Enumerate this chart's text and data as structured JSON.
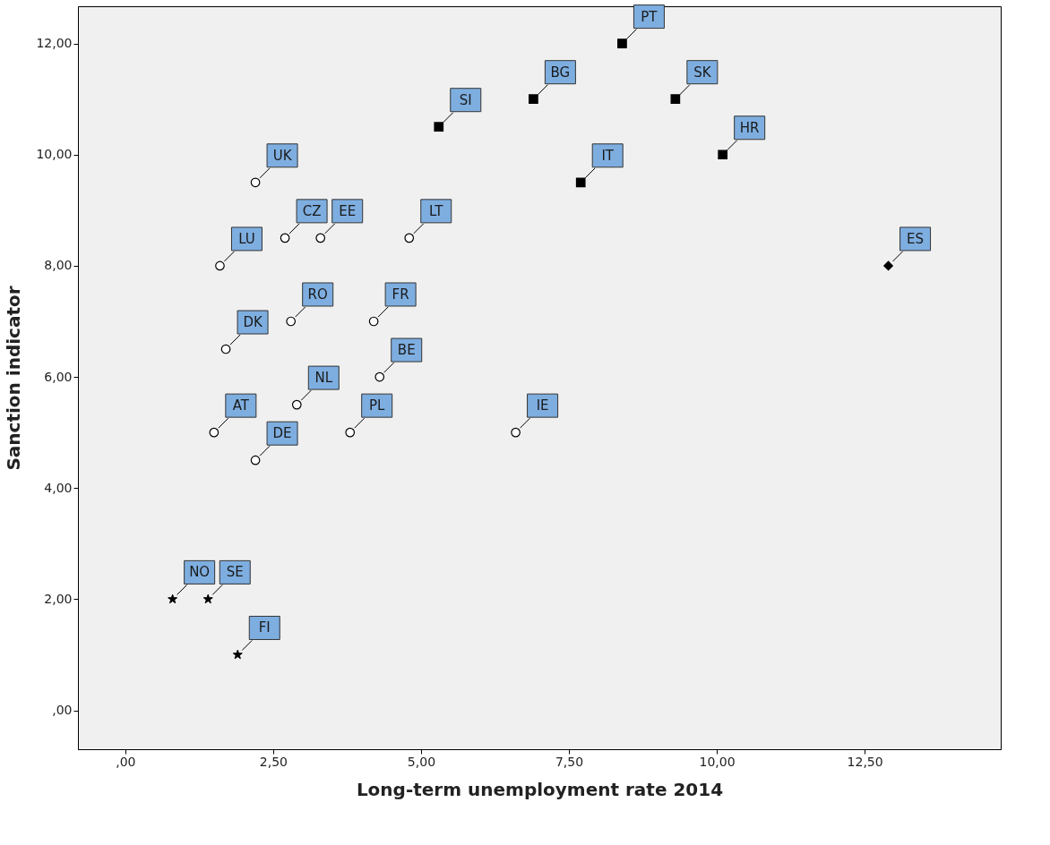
{
  "chart_data": {
    "type": "scatter",
    "xlabel": "Long-term unemployment rate 2014",
    "ylabel": "Sanction indicator",
    "xlim": [
      -0.8,
      14.8
    ],
    "ylim": [
      -0.7,
      12.67
    ],
    "xticks": [
      {
        "value": 0,
        "label": ",00"
      },
      {
        "value": 2.5,
        "label": "2,50"
      },
      {
        "value": 5,
        "label": "5,00"
      },
      {
        "value": 7.5,
        "label": "7,50"
      },
      {
        "value": 10,
        "label": "10,00"
      },
      {
        "value": 12.5,
        "label": "12,50"
      }
    ],
    "yticks": [
      {
        "value": 0,
        "label": ",00"
      },
      {
        "value": 2,
        "label": "2,00"
      },
      {
        "value": 4,
        "label": "4,00"
      },
      {
        "value": 6,
        "label": "6,00"
      },
      {
        "value": 8,
        "label": "8,00"
      },
      {
        "value": 10,
        "label": "10,00"
      },
      {
        "value": 12,
        "label": "12,00"
      }
    ],
    "grid": false,
    "series": [
      {
        "marker": "circle",
        "color": "#000000",
        "x": [
          2.2,
          3.3,
          2.7,
          4.8,
          1.6,
          4.2,
          2.8,
          1.7,
          4.3,
          2.9,
          1.5,
          3.8,
          6.6,
          2.2
        ],
        "values": [
          9.5,
          8.5,
          8.5,
          8.5,
          8,
          7,
          7,
          6.5,
          6,
          5.5,
          5,
          5,
          5,
          4.5
        ]
      },
      {
        "marker": "square",
        "color": "#000000",
        "x": [
          8.4,
          6.9,
          5.3,
          9.3,
          10.1,
          7.7
        ],
        "values": [
          12,
          11,
          10.5,
          11,
          10,
          9.5
        ]
      },
      {
        "marker": "diamond",
        "color": "#000000",
        "x": [
          12.9
        ],
        "values": [
          8
        ]
      },
      {
        "marker": "star",
        "color": "#000000",
        "x": [
          0.8,
          1.4,
          1.9
        ],
        "values": [
          2,
          2,
          1
        ]
      }
    ],
    "annotations": [
      {
        "text": "UK",
        "x": 2.2,
        "y": 9.5
      },
      {
        "text": "EE",
        "x": 3.3,
        "y": 8.5
      },
      {
        "text": "CZ",
        "x": 2.7,
        "y": 8.5
      },
      {
        "text": "LT",
        "x": 4.8,
        "y": 8.5
      },
      {
        "text": "LU",
        "x": 1.6,
        "y": 8
      },
      {
        "text": "FR",
        "x": 4.2,
        "y": 7
      },
      {
        "text": "RO",
        "x": 2.8,
        "y": 7
      },
      {
        "text": "DK",
        "x": 1.7,
        "y": 6.5
      },
      {
        "text": "BE",
        "x": 4.3,
        "y": 6
      },
      {
        "text": "NL",
        "x": 2.9,
        "y": 5.5
      },
      {
        "text": "AT",
        "x": 1.5,
        "y": 5
      },
      {
        "text": "PL",
        "x": 3.8,
        "y": 5
      },
      {
        "text": "IE",
        "x": 6.6,
        "y": 5
      },
      {
        "text": "DE",
        "x": 2.2,
        "y": 4.5
      },
      {
        "text": "PT",
        "x": 8.4,
        "y": 12
      },
      {
        "text": "BG",
        "x": 6.9,
        "y": 11
      },
      {
        "text": "SI",
        "x": 5.3,
        "y": 10.5
      },
      {
        "text": "SK",
        "x": 9.3,
        "y": 11
      },
      {
        "text": "HR",
        "x": 10.1,
        "y": 10
      },
      {
        "text": "IT",
        "x": 7.7,
        "y": 9.5
      },
      {
        "text": "ES",
        "x": 12.9,
        "y": 8
      },
      {
        "text": "NO",
        "x": 0.8,
        "y": 2
      },
      {
        "text": "SE",
        "x": 1.4,
        "y": 2
      },
      {
        "text": "FI",
        "x": 1.9,
        "y": 1
      }
    ]
  }
}
